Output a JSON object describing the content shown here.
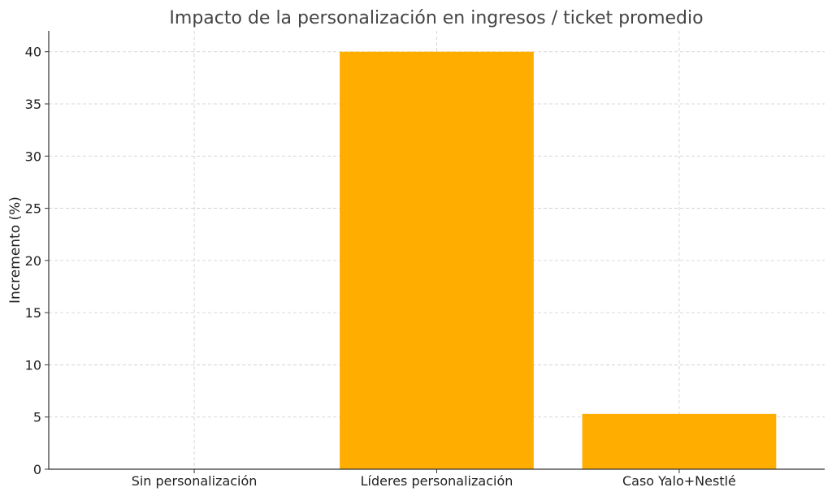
{
  "chart_data": {
    "type": "bar",
    "title": "Impacto de la personalización en ingresos / ticket promedio",
    "xlabel": "",
    "ylabel": "Incremento (%)",
    "categories": [
      "Sin personalización",
      "Líderes personalización",
      "Caso Yalo+Nestlé"
    ],
    "values": [
      0,
      40,
      5.3
    ],
    "ylim": [
      0,
      42
    ],
    "yticks": [
      0,
      5,
      10,
      15,
      20,
      25,
      30,
      35,
      40
    ],
    "grid": true,
    "legend": "none",
    "bar_color": "#ffae00"
  }
}
